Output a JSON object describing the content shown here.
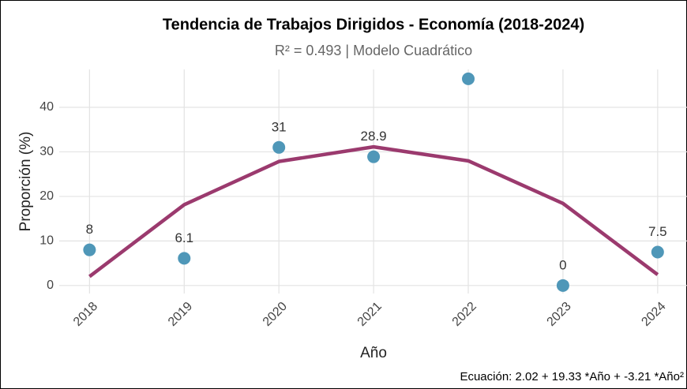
{
  "chart_data": {
    "type": "scatter",
    "title": "Tendencia de Trabajos Dirigidos - Economía (2018-2024)",
    "subtitle": "R² = 0.493 | Modelo Cuadrático",
    "x_label": "Año",
    "y_label": "Proporción (%)",
    "caption": "Ecuación: 2.02 + 19.33 *Año + -3.21 *Año²",
    "x": [
      2018,
      2019,
      2020,
      2021,
      2022,
      2023,
      2024
    ],
    "values": [
      8,
      6.1,
      31,
      28.9,
      46.4,
      0,
      7.5
    ],
    "value_labels": [
      "8",
      "6.1",
      "31",
      "28.9",
      null,
      "0",
      "7.5"
    ],
    "color": "#4f97b8",
    "fit": {
      "values": [
        2.02,
        18.14,
        27.84,
        31.12,
        27.98,
        18.42,
        2.44
      ],
      "color": "#9b3a6e"
    },
    "xlim": [
      2017.68,
      2024.31
    ],
    "xticks": [
      2018,
      2019,
      2020,
      2021,
      2022,
      2023,
      2024
    ],
    "ylim": [
      -1.8,
      48.5
    ],
    "yticks": [
      0,
      10,
      20,
      30,
      40
    ],
    "grid": true
  }
}
